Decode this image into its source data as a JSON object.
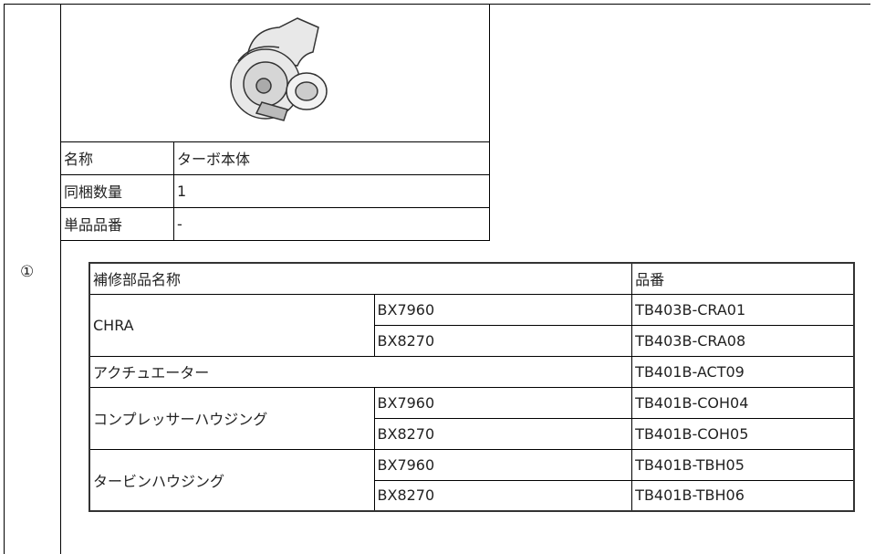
{
  "marker": "①",
  "summary": {
    "rows": [
      [
        "名称",
        "ターボ本体"
      ],
      [
        "同梱数量",
        "1"
      ],
      [
        "単品品番",
        "-"
      ]
    ]
  },
  "parts": {
    "header": [
      "補修部品名称",
      "品番"
    ],
    "groups": [
      {
        "name": "CHRA",
        "rows": [
          [
            "BX7960",
            "TB403B-CRA01"
          ],
          [
            "BX8270",
            "TB403B-CRA08"
          ]
        ]
      },
      {
        "name": "アクチュエーター",
        "part_number": "TB401B-ACT09"
      },
      {
        "name": "コンプレッサーハウジング",
        "rows": [
          [
            "BX7960",
            "TB401B-COH04"
          ],
          [
            "BX8270",
            "TB401B-COH05"
          ]
        ]
      },
      {
        "name": "タービンハウジング",
        "rows": [
          [
            "BX7960",
            "TB401B-TBH05"
          ],
          [
            "BX8270",
            "TB401B-TBH06"
          ]
        ]
      }
    ]
  }
}
